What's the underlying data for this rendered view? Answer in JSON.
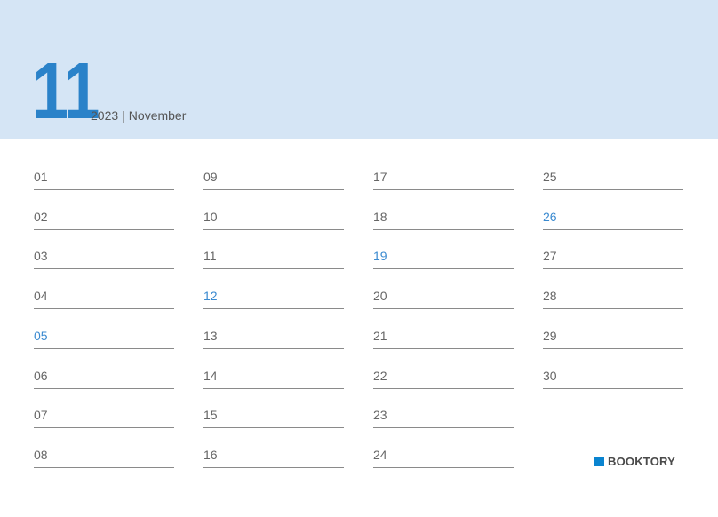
{
  "header": {
    "month_number": "11",
    "year": "2023",
    "separator": "|",
    "month_name": "November"
  },
  "colors": {
    "accent": "#2a82c9",
    "header_bg": "#d5e5f5",
    "highlight_day": "#3a8ad0"
  },
  "days": [
    {
      "label": "01",
      "highlight": false
    },
    {
      "label": "02",
      "highlight": false
    },
    {
      "label": "03",
      "highlight": false
    },
    {
      "label": "04",
      "highlight": false
    },
    {
      "label": "05",
      "highlight": true
    },
    {
      "label": "06",
      "highlight": false
    },
    {
      "label": "07",
      "highlight": false
    },
    {
      "label": "08",
      "highlight": false
    },
    {
      "label": "09",
      "highlight": false
    },
    {
      "label": "10",
      "highlight": false
    },
    {
      "label": "11",
      "highlight": false
    },
    {
      "label": "12",
      "highlight": true
    },
    {
      "label": "13",
      "highlight": false
    },
    {
      "label": "14",
      "highlight": false
    },
    {
      "label": "15",
      "highlight": false
    },
    {
      "label": "16",
      "highlight": false
    },
    {
      "label": "17",
      "highlight": false
    },
    {
      "label": "18",
      "highlight": false
    },
    {
      "label": "19",
      "highlight": true
    },
    {
      "label": "20",
      "highlight": false
    },
    {
      "label": "21",
      "highlight": false
    },
    {
      "label": "22",
      "highlight": false
    },
    {
      "label": "23",
      "highlight": false
    },
    {
      "label": "24",
      "highlight": false
    },
    {
      "label": "25",
      "highlight": false
    },
    {
      "label": "26",
      "highlight": true
    },
    {
      "label": "27",
      "highlight": false
    },
    {
      "label": "28",
      "highlight": false
    },
    {
      "label": "29",
      "highlight": false
    },
    {
      "label": "30",
      "highlight": false
    }
  ],
  "brand": {
    "name": "BOOKTORY"
  }
}
